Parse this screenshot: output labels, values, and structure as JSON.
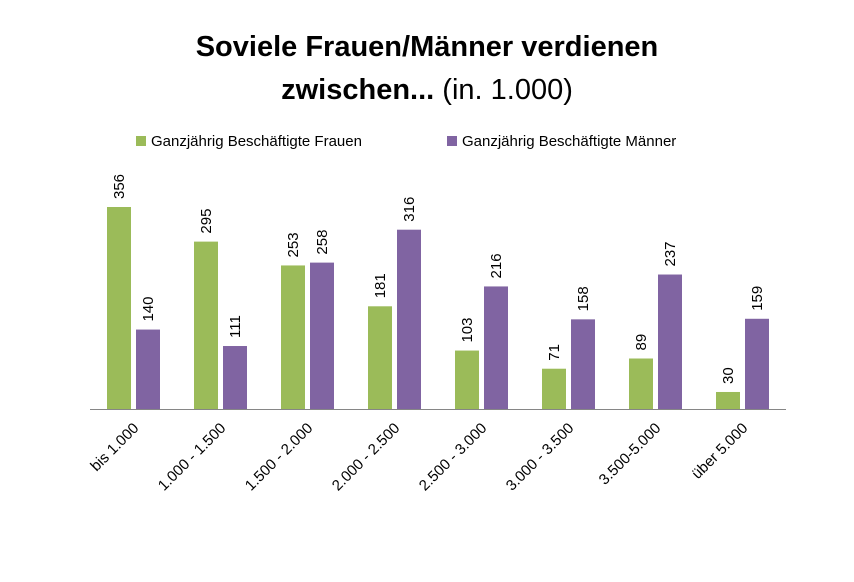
{
  "chart_data": {
    "type": "bar",
    "title_line1": "Soviele Frauen/Männer verdienen",
    "title_line2_bold": "zwischen...",
    "title_line2_normal": " (in. 1.000)",
    "xlabel": "",
    "ylabel": "",
    "ylim": [
      0,
      360
    ],
    "grid": false,
    "legend_position": "top",
    "categories": [
      "bis 1.000",
      "1.000 - 1.500",
      "1.500 - 2.000",
      "2.000 - 2.500",
      "2.500 - 3.000",
      "3.000 - 3.500",
      "3.500-5.000",
      "über 5.000"
    ],
    "series": [
      {
        "name": "Ganzjährig Beschäftigte Frauen",
        "color": "#9BBB59",
        "values": [
          356,
          295,
          253,
          181,
          103,
          71,
          89,
          30
        ]
      },
      {
        "name": "Ganzjährig Beschäftigte Männer",
        "color": "#8064A2",
        "values": [
          140,
          111,
          258,
          316,
          216,
          158,
          237,
          159
        ]
      }
    ]
  }
}
